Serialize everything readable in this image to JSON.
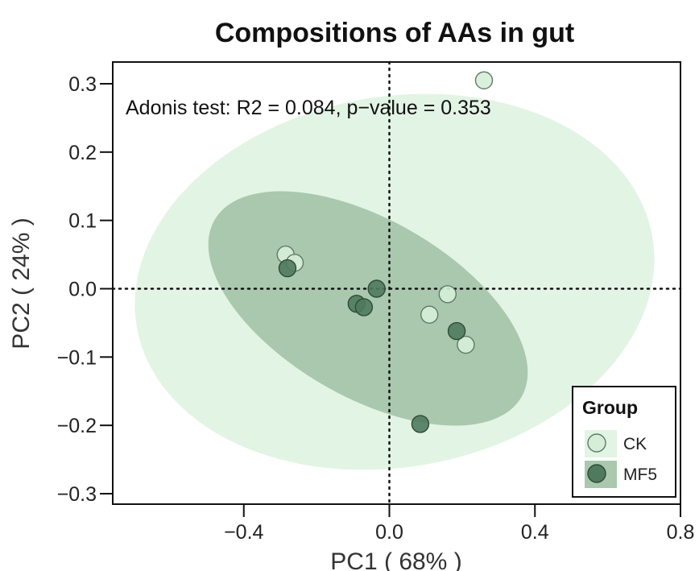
{
  "title": "Compositions of AAs in gut",
  "chart_data": {
    "type": "scatter",
    "title": "Compositions of AAs in gut",
    "xlabel": "PC1 ( 68% )",
    "ylabel": "PC2 ( 24% )",
    "xlim": [
      -0.8,
      0.8
    ],
    "ylim": [
      -0.32,
      0.33
    ],
    "xticks": [
      -0.4,
      0.0,
      0.4,
      0.8
    ],
    "xtick_labels": [
      "−0.4",
      "0.0",
      "0.4",
      "0.8"
    ],
    "yticks": [
      0.3,
      0.2,
      0.1,
      0.0,
      -0.1,
      -0.2,
      -0.3
    ],
    "ytick_labels": [
      "0.3",
      "0.2",
      "0.1",
      "0.0",
      "−0.1",
      "−0.2",
      "−0.3"
    ],
    "reference_lines": {
      "x": 0.0,
      "y": 0.0,
      "style": "dotted"
    },
    "annotation": "Adonis test: R2 = 0.084, p−value = 0.353",
    "legend": {
      "title": "Group",
      "position": "bottom-right"
    },
    "series": [
      {
        "name": "CK",
        "color": "#d6eed8",
        "ellipse_color": "#e2f4e4",
        "points": [
          {
            "x": 0.26,
            "y": 0.305
          },
          {
            "x": -0.285,
            "y": 0.05
          },
          {
            "x": -0.26,
            "y": 0.038
          },
          {
            "x": 0.16,
            "y": -0.008
          },
          {
            "x": 0.11,
            "y": -0.038
          },
          {
            "x": 0.21,
            "y": -0.082
          }
        ]
      },
      {
        "name": "MF5",
        "color": "#4f7a5c",
        "ellipse_color": "#a9c8ad",
        "points": [
          {
            "x": -0.28,
            "y": 0.03
          },
          {
            "x": -0.035,
            "y": 0.0
          },
          {
            "x": -0.09,
            "y": -0.022
          },
          {
            "x": -0.07,
            "y": -0.027
          },
          {
            "x": 0.185,
            "y": -0.062
          },
          {
            "x": 0.085,
            "y": -0.198
          }
        ]
      }
    ]
  }
}
